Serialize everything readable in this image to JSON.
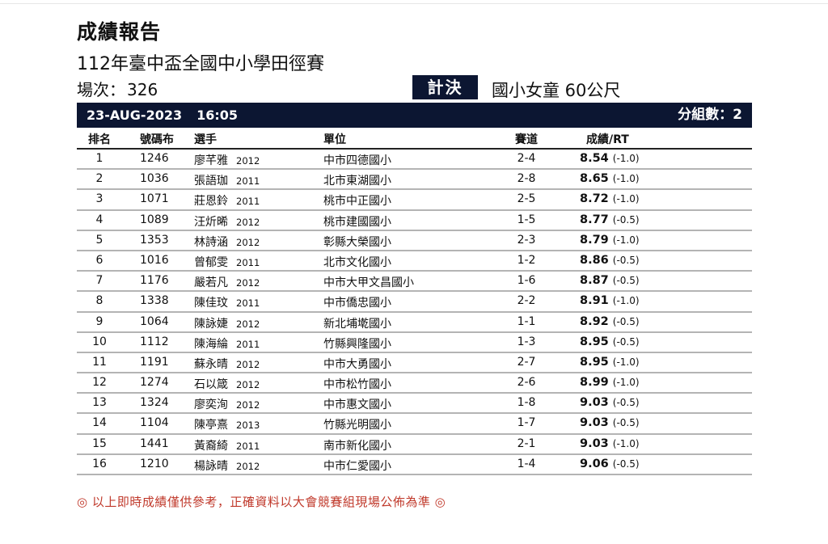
{
  "report": {
    "title": "成績報告",
    "meet": "112年臺中盃全國中小學田徑賽",
    "session_label": "場次：",
    "session_no": "326",
    "round": "計決",
    "event": "國小女童 60公尺",
    "date": "23-AUG-2023",
    "time": "16:05",
    "groups_label": "分組數：",
    "groups": "2"
  },
  "table": {
    "headers": {
      "rank": "排名",
      "bib": "號碼布",
      "athlete": "選手",
      "unit": "單位",
      "lane": "賽道",
      "result": "成績/RT"
    },
    "rows": [
      {
        "rank": "1",
        "bib": "1246",
        "name": "廖芊雅",
        "year": "2012",
        "unit": "中市四德國小",
        "lane": "2-4",
        "mark": "8.54",
        "wind": "(-1.0)"
      },
      {
        "rank": "2",
        "bib": "1036",
        "name": "張語珈",
        "year": "2011",
        "unit": "北市東湖國小",
        "lane": "2-8",
        "mark": "8.65",
        "wind": "(-1.0)"
      },
      {
        "rank": "3",
        "bib": "1071",
        "name": "莊恩鈴",
        "year": "2011",
        "unit": "桃市中正國小",
        "lane": "2-5",
        "mark": "8.72",
        "wind": "(-1.0)"
      },
      {
        "rank": "4",
        "bib": "1089",
        "name": "汪炘晞",
        "year": "2012",
        "unit": "桃市建國國小",
        "lane": "1-5",
        "mark": "8.77",
        "wind": "(-0.5)"
      },
      {
        "rank": "5",
        "bib": "1353",
        "name": "林詩涵",
        "year": "2012",
        "unit": "彰縣大榮國小",
        "lane": "2-3",
        "mark": "8.79",
        "wind": "(-1.0)"
      },
      {
        "rank": "6",
        "bib": "1016",
        "name": "曾郁雯",
        "year": "2011",
        "unit": "北市文化國小",
        "lane": "1-2",
        "mark": "8.86",
        "wind": "(-0.5)"
      },
      {
        "rank": "7",
        "bib": "1176",
        "name": "嚴若凡",
        "year": "2012",
        "unit": "中市大甲文昌國小",
        "lane": "1-6",
        "mark": "8.87",
        "wind": "(-0.5)"
      },
      {
        "rank": "8",
        "bib": "1338",
        "name": "陳佳玟",
        "year": "2011",
        "unit": "中市僑忠國小",
        "lane": "2-2",
        "mark": "8.91",
        "wind": "(-1.0)"
      },
      {
        "rank": "9",
        "bib": "1064",
        "name": "陳詠婕",
        "year": "2012",
        "unit": "新北埔墘國小",
        "lane": "1-1",
        "mark": "8.92",
        "wind": "(-0.5)"
      },
      {
        "rank": "10",
        "bib": "1112",
        "name": "陳海綸",
        "year": "2011",
        "unit": "竹縣興隆國小",
        "lane": "1-3",
        "mark": "8.95",
        "wind": "(-0.5)"
      },
      {
        "rank": "11",
        "bib": "1191",
        "name": "蘇永晴",
        "year": "2012",
        "unit": "中市大勇國小",
        "lane": "2-7",
        "mark": "8.95",
        "wind": "(-1.0)"
      },
      {
        "rank": "12",
        "bib": "1274",
        "name": "石以箴",
        "year": "2012",
        "unit": "中市松竹國小",
        "lane": "2-6",
        "mark": "8.99",
        "wind": "(-1.0)"
      },
      {
        "rank": "13",
        "bib": "1324",
        "name": "廖奕洵",
        "year": "2012",
        "unit": "中市惠文國小",
        "lane": "1-8",
        "mark": "9.03",
        "wind": "(-0.5)"
      },
      {
        "rank": "14",
        "bib": "1104",
        "name": "陳亭熹",
        "year": "2013",
        "unit": "竹縣光明國小",
        "lane": "1-7",
        "mark": "9.03",
        "wind": "(-0.5)"
      },
      {
        "rank": "15",
        "bib": "1441",
        "name": "黃裔綺",
        "year": "2011",
        "unit": "南市新化國小",
        "lane": "2-1",
        "mark": "9.03",
        "wind": "(-1.0)"
      },
      {
        "rank": "16",
        "bib": "1210",
        "name": "楊詠晴",
        "year": "2012",
        "unit": "中市仁愛國小",
        "lane": "1-4",
        "mark": "9.06",
        "wind": "(-0.5)"
      }
    ]
  },
  "footer": {
    "disclaimer": "◎ 以上即時成績僅供參考，正確資料以大會競賽組現場公佈為準 ◎"
  },
  "colors": {
    "navy": "#0c1632",
    "disclaimer_red": "#c0392b"
  }
}
